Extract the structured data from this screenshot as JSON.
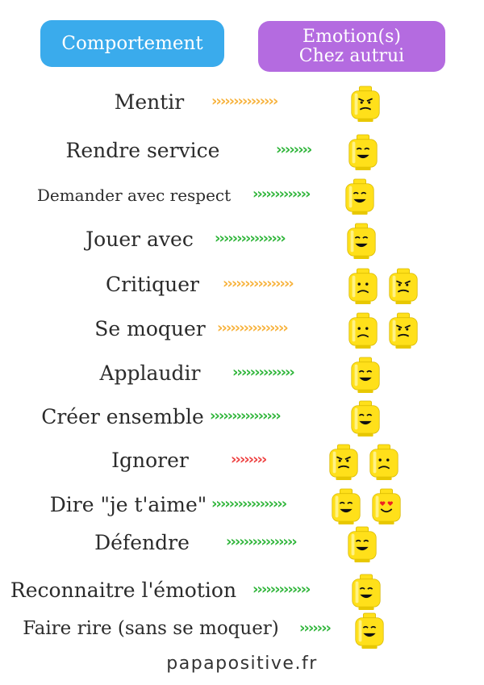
{
  "headers": {
    "behavior": "Comportement",
    "emotion_line1": "Emotion(s)",
    "emotion_line2": "Chez autrui"
  },
  "colors": {
    "behavior_header": "#3aabec",
    "emotion_header": "#b46be0",
    "arrow_orange": "#f7b23b",
    "arrow_green": "#2fb53a",
    "arrow_red": "#ee4242",
    "lego_yellow": "#ffe01a"
  },
  "rows": [
    {
      "label": "Mentir",
      "arrow_color": "orange",
      "arrows": "›››››››››››››››",
      "faces": [
        "angry-face"
      ]
    },
    {
      "label": "Rendre service",
      "arrow_color": "green",
      "arrows": "››››››››",
      "faces": [
        "happy-face"
      ]
    },
    {
      "label": "Demander avec respect",
      "arrow_color": "green",
      "arrows": "›››››››››››››",
      "faces": [
        "happy-face"
      ]
    },
    {
      "label": "Jouer avec",
      "arrow_color": "green",
      "arrows": "››››››››››››››››",
      "faces": [
        "happy-face"
      ]
    },
    {
      "label": "Critiquer",
      "arrow_color": "orange",
      "arrows": "››››››››››››››››",
      "faces": [
        "sad-face",
        "angry-face"
      ]
    },
    {
      "label": "Se moquer",
      "arrow_color": "orange",
      "arrows": "››››››››››››››››",
      "faces": [
        "sad-face",
        "angry-face"
      ]
    },
    {
      "label": "Applaudir",
      "arrow_color": "green",
      "arrows": "››››››››››››››",
      "faces": [
        "happy-face"
      ]
    },
    {
      "label": "Créer ensemble",
      "arrow_color": "green",
      "arrows": "››››››››››››››››",
      "faces": [
        "happy-face"
      ]
    },
    {
      "label": "Ignorer",
      "arrow_color": "red",
      "arrows": "››››››››",
      "faces": [
        "angry-face",
        "sad-face"
      ]
    },
    {
      "label": "Dire \"je t'aime\"",
      "arrow_color": "green",
      "arrows": "›››››››››››››››››",
      "faces": [
        "happy-face",
        "love-face"
      ]
    },
    {
      "label": "Défendre",
      "arrow_color": "green",
      "arrows": "››››››››››››››››",
      "faces": [
        "happy-face"
      ]
    },
    {
      "label": "Reconnaitre l'émotion",
      "arrow_color": "green",
      "arrows": "›››››››››››››",
      "faces": [
        "happy-face"
      ]
    },
    {
      "label": "Faire rire (sans se moquer)",
      "arrow_color": "green",
      "arrows": "›››››››",
      "faces": [
        "happy-face"
      ]
    }
  ],
  "footer": "papapositive.fr"
}
